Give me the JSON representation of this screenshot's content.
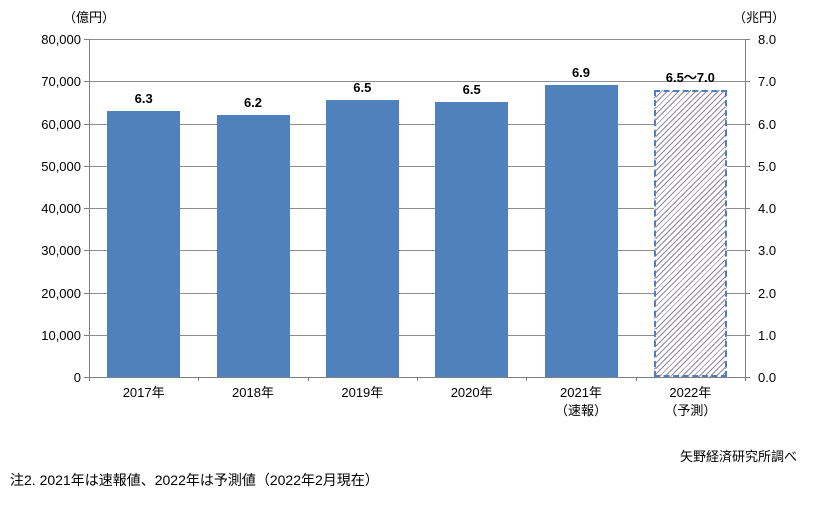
{
  "chart_data": {
    "type": "bar",
    "title": "",
    "categories": [
      "2017年",
      "2018年",
      "2019年",
      "2020年",
      "2021年（速報）",
      "2022年（予測）"
    ],
    "category_lines": [
      [
        "2017年"
      ],
      [
        "2018年"
      ],
      [
        "2019年"
      ],
      [
        "2020年"
      ],
      [
        "2021年",
        "（速報）"
      ],
      [
        "2022年",
        "（予測）"
      ]
    ],
    "bar_labels": [
      "6.3",
      "6.2",
      "6.5",
      "6.5",
      "6.9",
      "6.5〜7.0"
    ],
    "values_trillion_yen": [
      6.3,
      6.2,
      6.5,
      6.5,
      6.9,
      null
    ],
    "forecast": {
      "index": 5,
      "range_trillion_yen": [
        6.5,
        7.0
      ],
      "label": "6.5〜7.0"
    },
    "draw_heights_trillion_yen": [
      6.3,
      6.2,
      6.55,
      6.52,
      6.9,
      6.8
    ],
    "left_axis": {
      "title": "（億円）",
      "range": [
        0,
        80000
      ],
      "ticks": [
        "80,000",
        "70,000",
        "60,000",
        "50,000",
        "40,000",
        "30,000",
        "20,000",
        "10,000",
        "0"
      ]
    },
    "right_axis": {
      "title": "（兆円）",
      "range": [
        0,
        8.0
      ],
      "ticks": [
        "8.0",
        "7.0",
        "6.0",
        "5.0",
        "4.0",
        "3.0",
        "2.0",
        "1.0",
        "0.0"
      ]
    },
    "legend": "none",
    "gridlines": "horizontal",
    "colors": {
      "bar": "#4f81bd",
      "forecast_border": "#4d7ebd",
      "forecast_hatch": "#9184a6",
      "grid": "#8e8e8e",
      "axis": "#7f7f7f",
      "text": "#000000"
    }
  },
  "footer": {
    "note": "注2. 2021年は速報値、2022年は予測値（2022年2月現在）",
    "source": "矢野経済研究所調べ"
  }
}
